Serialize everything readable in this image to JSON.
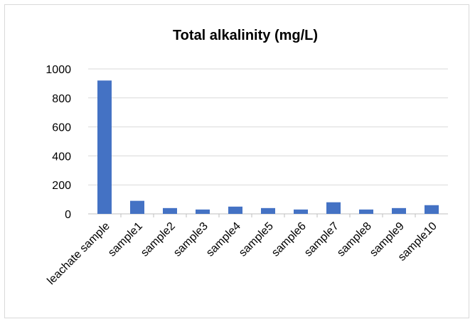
{
  "chart_data": {
    "type": "bar",
    "title": "Total alkalinity (mg/L)",
    "xlabel": "",
    "ylabel": "",
    "categories": [
      "leachate sample",
      "sample1",
      "sample2",
      "sample3",
      "sample4",
      "sample5",
      "sample6",
      "sample7",
      "sample8",
      "sample9",
      "sample10"
    ],
    "values": [
      920,
      90,
      40,
      30,
      50,
      40,
      30,
      80,
      30,
      40,
      60
    ],
    "ylim": [
      0,
      1000
    ],
    "yticks": [
      "0",
      "200",
      "400",
      "600",
      "800",
      "1000"
    ],
    "grid": true,
    "legend": "none",
    "colors": {
      "bar": "#4472C4",
      "grid": "#d9d9d9",
      "axis": "#bfbfbf"
    }
  }
}
